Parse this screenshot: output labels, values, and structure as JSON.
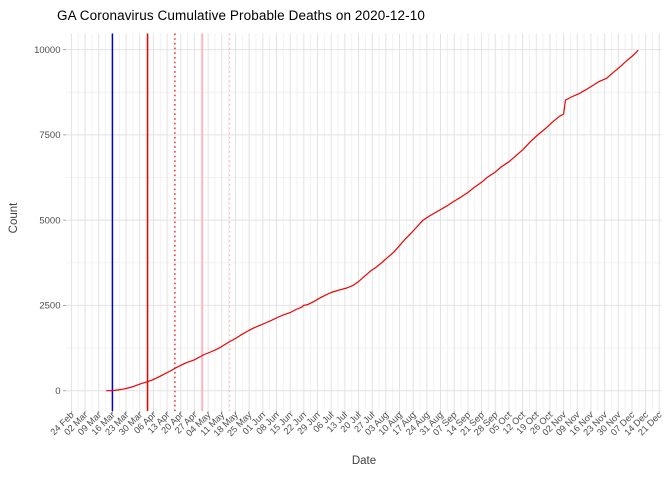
{
  "title": "GA Coronavirus Cumulative Probable Deaths on 2020-12-10",
  "chart_data": {
    "type": "line",
    "title": "GA Coronavirus Cumulative Probable Deaths on 2020-12-10",
    "xlabel": "Date",
    "ylabel": "Count",
    "ylim": [
      0,
      10000
    ],
    "y_ticks": [
      0,
      2500,
      5000,
      7500,
      10000
    ],
    "y_minor_gridlines": [
      1250,
      3750,
      6250,
      8750
    ],
    "grid": "major-and-minor, light gray on white",
    "legend": "none",
    "theme": {
      "background": "#ffffff",
      "grid_major": "#e2e2e2",
      "grid_minor": "#f0f0f0",
      "tick_color": "#9a9a9a",
      "tick_label_color": "#4d4d4d",
      "line_color": "#ee0000"
    },
    "x_ticks": [
      {
        "label": "24 Feb",
        "date": "2020-02-24"
      },
      {
        "label": "02 Mar",
        "date": "2020-03-02"
      },
      {
        "label": "09 Mar",
        "date": "2020-03-09"
      },
      {
        "label": "16 Mar",
        "date": "2020-03-16"
      },
      {
        "label": "23 Mar",
        "date": "2020-03-23"
      },
      {
        "label": "30 Mar",
        "date": "2020-03-30"
      },
      {
        "label": "06 Apr",
        "date": "2020-04-06"
      },
      {
        "label": "13 Apr",
        "date": "2020-04-13"
      },
      {
        "label": "20 Apr",
        "date": "2020-04-20"
      },
      {
        "label": "27 Apr",
        "date": "2020-04-27"
      },
      {
        "label": "04 May",
        "date": "2020-05-04"
      },
      {
        "label": "11 May",
        "date": "2020-05-11"
      },
      {
        "label": "18 May",
        "date": "2020-05-18"
      },
      {
        "label": "25 May",
        "date": "2020-05-25"
      },
      {
        "label": "01 Jun",
        "date": "2020-06-01"
      },
      {
        "label": "08 Jun",
        "date": "2020-06-08"
      },
      {
        "label": "15 Jun",
        "date": "2020-06-15"
      },
      {
        "label": "22 Jun",
        "date": "2020-06-22"
      },
      {
        "label": "29 Jun",
        "date": "2020-06-29"
      },
      {
        "label": "06 Jul",
        "date": "2020-07-06"
      },
      {
        "label": "13 Jul",
        "date": "2020-07-13"
      },
      {
        "label": "20 Jul",
        "date": "2020-07-20"
      },
      {
        "label": "27 Jul",
        "date": "2020-07-27"
      },
      {
        "label": "03 Aug",
        "date": "2020-08-03"
      },
      {
        "label": "10 Aug",
        "date": "2020-08-10"
      },
      {
        "label": "17 Aug",
        "date": "2020-08-17"
      },
      {
        "label": "24 Aug",
        "date": "2020-08-24"
      },
      {
        "label": "31 Aug",
        "date": "2020-08-31"
      },
      {
        "label": "07 Sep",
        "date": "2020-09-07"
      },
      {
        "label": "14 Sep",
        "date": "2020-09-14"
      },
      {
        "label": "21 Sep",
        "date": "2020-09-21"
      },
      {
        "label": "28 Sep",
        "date": "2020-09-28"
      },
      {
        "label": "05 Oct",
        "date": "2020-10-05"
      },
      {
        "label": "12 Oct",
        "date": "2020-10-12"
      },
      {
        "label": "19 Oct",
        "date": "2020-10-19"
      },
      {
        "label": "26 Oct",
        "date": "2020-10-26"
      },
      {
        "label": "02 Nov",
        "date": "2020-11-02"
      },
      {
        "label": "09 Nov",
        "date": "2020-11-09"
      },
      {
        "label": "16 Nov",
        "date": "2020-11-16"
      },
      {
        "label": "23 Nov",
        "date": "2020-11-23"
      },
      {
        "label": "30 Nov",
        "date": "2020-11-30"
      },
      {
        "label": "07 Dec",
        "date": "2020-12-07"
      },
      {
        "label": "14 Dec",
        "date": "2020-12-14"
      },
      {
        "label": "21 Dec",
        "date": "2020-12-21"
      }
    ],
    "vlines": [
      {
        "date": "2020-03-16",
        "color": "#0000cd",
        "style": "solid",
        "width": 1.5
      },
      {
        "date": "2020-04-03",
        "color": "#ee0000",
        "style": "solid",
        "width": 1.5
      },
      {
        "date": "2020-04-17",
        "color": "#ee0000",
        "style": "dotted",
        "width": 1.2
      },
      {
        "date": "2020-05-01",
        "color": "#ffb6c1",
        "style": "solid",
        "width": 2.0
      },
      {
        "date": "2020-05-15",
        "color": "#ffb6c1",
        "style": "dotted",
        "width": 1.3
      }
    ],
    "series": [
      {
        "name": "cumulative-probable-deaths",
        "color": "#ee0000",
        "points": [
          [
            "2020-03-13",
            0
          ],
          [
            "2020-03-15",
            3
          ],
          [
            "2020-03-17",
            10
          ],
          [
            "2020-03-19",
            22
          ],
          [
            "2020-03-21",
            40
          ],
          [
            "2020-03-23",
            65
          ],
          [
            "2020-03-25",
            95
          ],
          [
            "2020-03-27",
            130
          ],
          [
            "2020-03-29",
            172
          ],
          [
            "2020-03-31",
            215
          ],
          [
            "2020-04-02",
            245
          ],
          [
            "2020-04-03",
            265
          ],
          [
            "2020-04-05",
            305
          ],
          [
            "2020-04-08",
            380
          ],
          [
            "2020-04-10",
            440
          ],
          [
            "2020-04-13",
            530
          ],
          [
            "2020-04-15",
            590
          ],
          [
            "2020-04-17",
            655
          ],
          [
            "2020-04-19",
            715
          ],
          [
            "2020-04-22",
            800
          ],
          [
            "2020-04-24",
            845
          ],
          [
            "2020-04-27",
            905
          ],
          [
            "2020-04-30",
            1000
          ],
          [
            "2020-05-02",
            1060
          ],
          [
            "2020-05-04",
            1105
          ],
          [
            "2020-05-07",
            1180
          ],
          [
            "2020-05-10",
            1260
          ],
          [
            "2020-05-12",
            1330
          ],
          [
            "2020-05-15",
            1440
          ],
          [
            "2020-05-18",
            1530
          ],
          [
            "2020-05-21",
            1640
          ],
          [
            "2020-05-24",
            1740
          ],
          [
            "2020-05-27",
            1830
          ],
          [
            "2020-05-29",
            1880
          ],
          [
            "2020-05-31",
            1930
          ],
          [
            "2020-06-03",
            2000
          ],
          [
            "2020-06-06",
            2080
          ],
          [
            "2020-06-09",
            2160
          ],
          [
            "2020-06-12",
            2230
          ],
          [
            "2020-06-15",
            2290
          ],
          [
            "2020-06-18",
            2380
          ],
          [
            "2020-06-21",
            2450
          ],
          [
            "2020-06-22",
            2505
          ],
          [
            "2020-06-24",
            2525
          ],
          [
            "2020-06-27",
            2610
          ],
          [
            "2020-06-30",
            2710
          ],
          [
            "2020-07-03",
            2800
          ],
          [
            "2020-07-06",
            2880
          ],
          [
            "2020-07-10",
            2950
          ],
          [
            "2020-07-14",
            3010
          ],
          [
            "2020-07-17",
            3080
          ],
          [
            "2020-07-20",
            3200
          ],
          [
            "2020-07-23",
            3350
          ],
          [
            "2020-07-26",
            3500
          ],
          [
            "2020-07-29",
            3620
          ],
          [
            "2020-08-01",
            3760
          ],
          [
            "2020-08-04",
            3910
          ],
          [
            "2020-08-07",
            4060
          ],
          [
            "2020-08-10",
            4250
          ],
          [
            "2020-08-13",
            4450
          ],
          [
            "2020-08-16",
            4620
          ],
          [
            "2020-08-19",
            4810
          ],
          [
            "2020-08-22",
            5000
          ],
          [
            "2020-08-25",
            5110
          ],
          [
            "2020-08-28",
            5210
          ],
          [
            "2020-08-31",
            5310
          ],
          [
            "2020-09-03",
            5410
          ],
          [
            "2020-09-07",
            5560
          ],
          [
            "2020-09-10",
            5660
          ],
          [
            "2020-09-14",
            5810
          ],
          [
            "2020-09-17",
            5950
          ],
          [
            "2020-09-21",
            6110
          ],
          [
            "2020-09-24",
            6260
          ],
          [
            "2020-09-28",
            6410
          ],
          [
            "2020-10-01",
            6560
          ],
          [
            "2020-10-05",
            6710
          ],
          [
            "2020-10-08",
            6860
          ],
          [
            "2020-10-12",
            7060
          ],
          [
            "2020-10-16",
            7300
          ],
          [
            "2020-10-20",
            7510
          ],
          [
            "2020-10-24",
            7700
          ],
          [
            "2020-10-27",
            7860
          ],
          [
            "2020-10-31",
            8050
          ],
          [
            "2020-11-02",
            8110
          ],
          [
            "2020-11-03",
            8520
          ],
          [
            "2020-11-06",
            8610
          ],
          [
            "2020-11-10",
            8710
          ],
          [
            "2020-11-13",
            8810
          ],
          [
            "2020-11-17",
            8950
          ],
          [
            "2020-11-20",
            9060
          ],
          [
            "2020-11-24",
            9160
          ],
          [
            "2020-11-27",
            9310
          ],
          [
            "2020-12-01",
            9500
          ],
          [
            "2020-12-04",
            9660
          ],
          [
            "2020-12-07",
            9800
          ],
          [
            "2020-12-09",
            9910
          ],
          [
            "2020-12-10",
            9973
          ]
        ]
      }
    ]
  }
}
